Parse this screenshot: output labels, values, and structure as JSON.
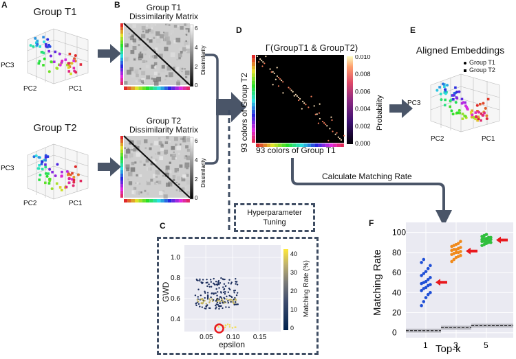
{
  "panels": {
    "A": {
      "label": "A",
      "t1_title": "Group T1",
      "t2_title": "Group T2",
      "axis_pc1": "PC1",
      "axis_pc2": "PC2",
      "axis_pc3": "PC3"
    },
    "B": {
      "label": "B",
      "t1_title_line1": "Group T1",
      "t1_title_line2": "Dissimilarity Matrix",
      "t2_title_line1": "Group T2",
      "t2_title_line2": "Dissimilarity Matrix",
      "colorbar_label": "Dissimilarity",
      "colorbar_ticks": [
        "6",
        "4",
        "2",
        "0"
      ]
    },
    "C": {
      "label": "C",
      "hyper_line1": "Hyperparameter",
      "hyper_line2": "Tuning",
      "chart_data": {
        "type": "scatter",
        "xlabel": "epsilon",
        "ylabel": "GWD",
        "x_ticks": [
          "0.05",
          "0.10",
          "0.15"
        ],
        "y_ticks": [
          "1.0",
          "0.8",
          "0.6",
          "0.4"
        ],
        "colorbar_label": "Matching Rate (%)",
        "colorbar_ticks": [
          "40",
          "30",
          "20",
          "10",
          "0"
        ],
        "highlight": {
          "x": 0.075,
          "y": 0.31
        }
      }
    },
    "D": {
      "label": "D",
      "title": "Γ(GroupT1 & GroupT2)",
      "xlabel": "93 colors of Group T1",
      "ylabel_line1": "93 colors of",
      "ylabel_line2": "Group T2",
      "colorbar_label": "Probability",
      "colorbar_ticks": [
        "0.010",
        "0.008",
        "0.006",
        "0.004",
        "0.002",
        "0.000"
      ]
    },
    "E": {
      "label": "E",
      "title": "Aligned Embeddings",
      "legend_t1": "Group T1",
      "legend_t2": "Group T2",
      "axis_pc1": "PC1",
      "axis_pc2": "PC2",
      "axis_pc3": "PC3"
    },
    "F": {
      "label": "F",
      "chart_data": {
        "type": "scatter",
        "xlabel": "Top-k",
        "ylabel": "Matching Rate",
        "categories": [
          "1",
          "3",
          "5"
        ],
        "y_ticks": [
          "0",
          "20",
          "40",
          "60",
          "80",
          "100"
        ],
        "ylim": [
          -5,
          110
        ],
        "series": [
          {
            "category": "1",
            "color": "#1f4fd6",
            "values": [
              27,
              31,
              35,
              38,
              40,
              42,
              44,
              45,
              47,
              48,
              49,
              50,
              51,
              53,
              55,
              57,
              59,
              61,
              64,
              67,
              70,
              73
            ]
          },
          {
            "category": "3",
            "color": "#f08a1c",
            "values": [
              71,
              73,
              75,
              76,
              77,
              78,
              79,
              80,
              80,
              81,
              82,
              83,
              83,
              84,
              85,
              86,
              87,
              88,
              89,
              91
            ]
          },
          {
            "category": "5",
            "color": "#2fbf3c",
            "values": [
              87,
              88,
              89,
              90,
              90,
              91,
              91,
              92,
              92,
              93,
              93,
              94,
              94,
              95,
              95,
              96,
              97,
              98
            ]
          }
        ],
        "chance_levels": [
          2,
          5,
          7
        ]
      }
    }
  },
  "flow": {
    "matching_label": "Calculate Matching Rate"
  },
  "colors": {
    "arrow": "#4a5568",
    "dash": "#3f4d63",
    "red_arrow": "#e8191e",
    "highlight_circle": "#e8191e"
  }
}
